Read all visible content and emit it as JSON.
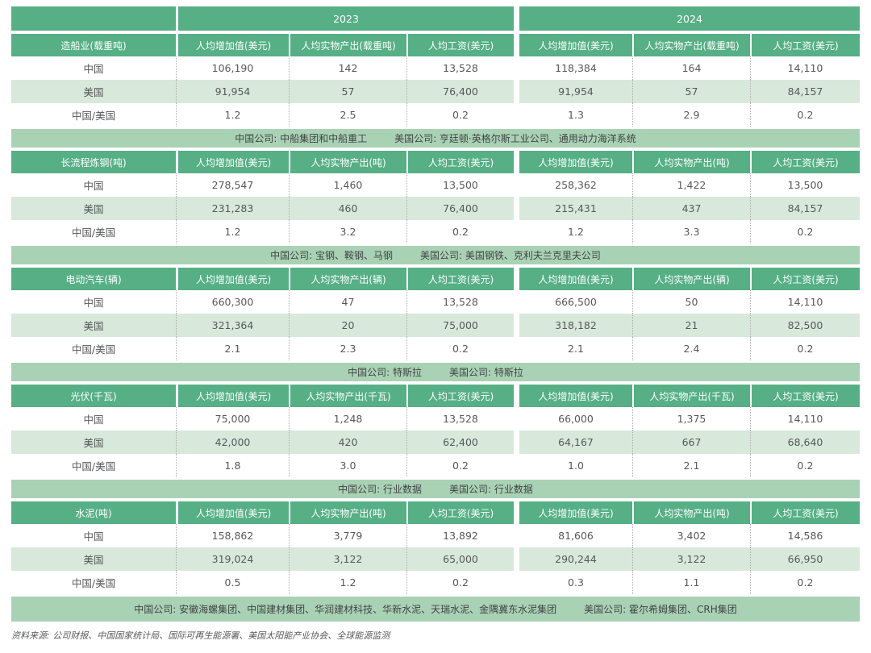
{
  "years": [
    "2023",
    "2024"
  ],
  "source_note": "资料来源: 公司财报、中国国家统计局、国际可再生能源署、美国太阳能产业协会、全球能源监测",
  "colors": {
    "header_green": "#56AF85",
    "row_light_green": "#D8E9DC",
    "company_band_green": "#A9D2B5"
  },
  "sections": [
    {
      "label": "造船业(载重吨)",
      "headers": [
        "人均增加值(美元)",
        "人均实物产出(载重吨)",
        "人均工资(美元)",
        "人均增加值(美元)",
        "人均实物产出(载重吨)",
        "人均工资(美元)"
      ],
      "rows": [
        {
          "name": "中国",
          "values": [
            "106,190",
            "142",
            "13,528",
            "118,384",
            "164",
            "14,110"
          ]
        },
        {
          "name": "美国",
          "values": [
            "91,954",
            "57",
            "76,400",
            "91,954",
            "57",
            "84,157"
          ]
        },
        {
          "name": "中国/美国",
          "values": [
            "1.2",
            "2.5",
            "0.2",
            "1.3",
            "2.9",
            "0.2"
          ]
        }
      ],
      "companies_china": "中国公司: 中船集团和中船重工",
      "companies_usa": "美国公司: 亨廷顿·英格尔斯工业公司、通用动力海洋系统"
    },
    {
      "label": "长流程炼钢(吨)",
      "headers": [
        "人均增加值(美元)",
        "人均实物产出(吨)",
        "人均工资(美元)",
        "人均增加值(美元)",
        "人均实物产出(吨)",
        "人均工资(美元)"
      ],
      "rows": [
        {
          "name": "中国",
          "values": [
            "278,547",
            "1,460",
            "13,500",
            "258,362",
            "1,422",
            "13,500"
          ]
        },
        {
          "name": "美国",
          "values": [
            "231,283",
            "460",
            "76,400",
            "215,431",
            "437",
            "84,157"
          ]
        },
        {
          "name": "中国/美国",
          "values": [
            "1.2",
            "3.2",
            "0.2",
            "1.2",
            "3.3",
            "0.2"
          ]
        }
      ],
      "companies_china": "中国公司: 宝钢、鞍钢、马钢",
      "companies_usa": "美国公司: 美国钢铁、克利夫兰克里夫公司"
    },
    {
      "label": "电动汽车(辆)",
      "headers": [
        "人均增加值(美元)",
        "人均实物产出(辆)",
        "人均工资(美元)",
        "人均增加值(美元)",
        "人均实物产出(辆)",
        "人均工资(美元)"
      ],
      "rows": [
        {
          "name": "中国",
          "values": [
            "660,300",
            "47",
            "13,528",
            "666,500",
            "50",
            "14,110"
          ]
        },
        {
          "name": "美国",
          "values": [
            "321,364",
            "20",
            "75,000",
            "318,182",
            "21",
            "82,500"
          ]
        },
        {
          "name": "中国/美国",
          "values": [
            "2.1",
            "2.3",
            "0.2",
            "2.1",
            "2.4",
            "0.2"
          ]
        }
      ],
      "companies_china": "中国公司: 特斯拉",
      "companies_usa": "美国公司: 特斯拉"
    },
    {
      "label": "光伏(千瓦)",
      "headers": [
        "人均增加值(美元)",
        "人均实物产出(千瓦)",
        "人均工资(美元)",
        "人均增加值(美元)",
        "人均实物产出(千瓦)",
        "人均工资(美元)"
      ],
      "rows": [
        {
          "name": "中国",
          "values": [
            "75,000",
            "1,248",
            "13,528",
            "66,000",
            "1,375",
            "14,110"
          ]
        },
        {
          "name": "美国",
          "values": [
            "42,000",
            "420",
            "62,400",
            "64,167",
            "667",
            "68,640"
          ]
        },
        {
          "name": "中国/美国",
          "values": [
            "1.8",
            "3.0",
            "0.2",
            "1.0",
            "2.1",
            "0.2"
          ]
        }
      ],
      "companies_china": "中国公司: 行业数据",
      "companies_usa": "美国公司: 行业数据"
    },
    {
      "label": "水泥(吨)",
      "headers": [
        "人均增加值(美元)",
        "人均实物产出(吨)",
        "人均工资(美元)",
        "人均增加值(美元)",
        "人均实物产出(吨)",
        "人均工资(美元)"
      ],
      "rows": [
        {
          "name": "中国",
          "values": [
            "158,862",
            "3,779",
            "13,892",
            "81,606",
            "3,402",
            "14,586"
          ]
        },
        {
          "name": "美国",
          "values": [
            "319,024",
            "3,122",
            "65,000",
            "290,244",
            "3,122",
            "66,950"
          ]
        },
        {
          "name": "中国/美国",
          "values": [
            "0.5",
            "1.2",
            "0.2",
            "0.3",
            "1.1",
            "0.2"
          ]
        }
      ],
      "companies_china": "中国公司: 安徽海螺集团、中国建材集团、华润建材科技、华新水泥、天瑞水泥、金隅冀东水泥集团",
      "companies_usa": "美国公司: 霍尔希姆集团、CRH集团"
    }
  ]
}
